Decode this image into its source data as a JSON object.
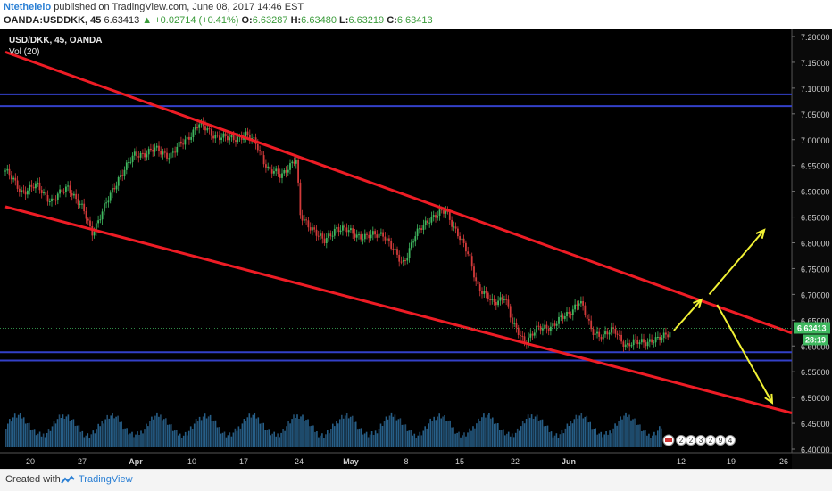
{
  "header": {
    "author": "Ntethelelo",
    "published_text": "published on TradingView.com, June 08, 2017 14:46 EST",
    "symbol": "OANDA:USDDKK, 45",
    "last": "6.63413",
    "change": "+0.02714 (+0.41%)",
    "o_label": "O:",
    "o": "6.63287",
    "h_label": "H:",
    "h": "6.63480",
    "l_label": "L:",
    "l": "6.63219",
    "c_label": "C:",
    "c": "6.63413"
  },
  "footer": {
    "created_with": "Created with",
    "brand": "TradingView"
  },
  "chart_data": {
    "type": "candlestick",
    "legend": [
      "USD/DKK, 45, OANDA",
      "Vol (20)"
    ],
    "y_ticks": [
      "7.20000",
      "7.15000",
      "7.10000",
      "7.05000",
      "7.00000",
      "6.95000",
      "6.90000",
      "6.85000",
      "6.80000",
      "6.75000",
      "6.70000",
      "6.65000",
      "6.60000",
      "6.55000",
      "6.50000",
      "6.45000",
      "6.40000"
    ],
    "ylim": [
      6.395,
      7.205
    ],
    "x_ticks": [
      "20",
      "27",
      "Apr",
      "10",
      "17",
      "24",
      "May",
      "8",
      "15",
      "22",
      "Jun",
      "12",
      "19",
      "26"
    ],
    "last_price_label": "6.63413",
    "countdown_label": "28:19",
    "event_markers": [
      "2",
      "2",
      "3",
      "2",
      "9",
      "4"
    ],
    "price_path": [
      {
        "t": 0,
        "v": 6.94
      },
      {
        "t": 4,
        "v": 6.9
      },
      {
        "t": 8,
        "v": 6.91
      },
      {
        "t": 12,
        "v": 6.88
      },
      {
        "t": 16,
        "v": 6.91
      },
      {
        "t": 20,
        "v": 6.86
      },
      {
        "t": 22,
        "v": 6.82
      },
      {
        "t": 26,
        "v": 6.88
      },
      {
        "t": 29,
        "v": 6.93
      },
      {
        "t": 33,
        "v": 6.97
      },
      {
        "t": 38,
        "v": 6.98
      },
      {
        "t": 42,
        "v": 6.97
      },
      {
        "t": 46,
        "v": 7.0
      },
      {
        "t": 49,
        "v": 7.03
      },
      {
        "t": 53,
        "v": 7.01
      },
      {
        "t": 57,
        "v": 7.0
      },
      {
        "t": 61,
        "v": 7.01
      },
      {
        "t": 64,
        "v": 6.99
      },
      {
        "t": 67,
        "v": 6.94
      },
      {
        "t": 70,
        "v": 6.93
      },
      {
        "t": 72,
        "v": 6.95
      },
      {
        "t": 74,
        "v": 6.96
      },
      {
        "t": 75,
        "v": 6.85
      },
      {
        "t": 78,
        "v": 6.83
      },
      {
        "t": 81,
        "v": 6.8
      },
      {
        "t": 84,
        "v": 6.83
      },
      {
        "t": 88,
        "v": 6.82
      },
      {
        "t": 92,
        "v": 6.81
      },
      {
        "t": 96,
        "v": 6.82
      },
      {
        "t": 99,
        "v": 6.78
      },
      {
        "t": 101,
        "v": 6.76
      },
      {
        "t": 104,
        "v": 6.81
      },
      {
        "t": 108,
        "v": 6.85
      },
      {
        "t": 112,
        "v": 6.86
      },
      {
        "t": 115,
        "v": 6.82
      },
      {
        "t": 118,
        "v": 6.77
      },
      {
        "t": 120,
        "v": 6.72
      },
      {
        "t": 124,
        "v": 6.68
      },
      {
        "t": 127,
        "v": 6.7
      },
      {
        "t": 129,
        "v": 6.64
      },
      {
        "t": 132,
        "v": 6.61
      },
      {
        "t": 135,
        "v": 6.63
      },
      {
        "t": 139,
        "v": 6.64
      },
      {
        "t": 143,
        "v": 6.66
      },
      {
        "t": 146,
        "v": 6.69
      },
      {
        "t": 149,
        "v": 6.63
      },
      {
        "t": 152,
        "v": 6.62
      },
      {
        "t": 155,
        "v": 6.63
      },
      {
        "t": 158,
        "v": 6.6
      },
      {
        "t": 162,
        "v": 6.61
      },
      {
        "t": 166,
        "v": 6.61
      },
      {
        "t": 169,
        "v": 6.63
      }
    ],
    "t_range": [
      0,
      200
    ],
    "annotations": {
      "channel_upper": [
        [
          6.97,
          2.1,
          0,
          200
        ]
      ],
      "horizontal_resistance": [
        7.088,
        7.065
      ],
      "horizontal_support": [
        6.588,
        6.572
      ],
      "channel_upper_line": {
        "t1": 0,
        "v1": 7.17,
        "t2": 200,
        "v2": 6.625
      },
      "channel_lower_line": {
        "t1": 0,
        "v1": 6.87,
        "t2": 200,
        "v2": 6.47
      },
      "arrows": [
        {
          "from": [
            170,
            6.63
          ],
          "to": [
            177,
            6.69
          ]
        },
        {
          "from": [
            179,
            6.7
          ],
          "to": [
            193,
            6.825
          ]
        },
        {
          "from": [
            181,
            6.68
          ],
          "to": [
            195,
            6.49
          ]
        }
      ]
    },
    "colors": {
      "background": "#000000",
      "line": "#ee1c25",
      "hline": "#3340c8",
      "arrow": "#f1f135",
      "up": "#2fa84f",
      "down": "#cc2f2f",
      "volume": "#2b6f9e"
    }
  }
}
